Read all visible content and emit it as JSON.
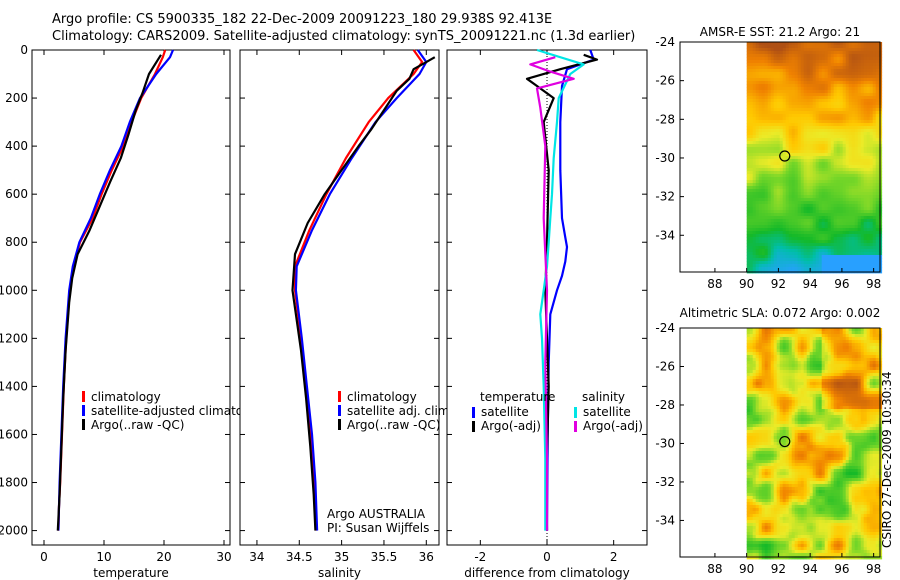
{
  "header": {
    "line1": "Argo profile: CS 5900335_182 22-Dec-2009 20091223_180 29.938S 92.413E",
    "line2": "Climatology: CARS2009. Satellite-adjusted climatology: synTS_20091221.nc (1.3d earlier)"
  },
  "side_label": "CSIRO 27-Dec-2009 10:30:34",
  "colors": {
    "clim": "#ff0000",
    "sat": "#0000ff",
    "argo": "#000000",
    "sat_sal": "#00e5e5",
    "argo_sal": "#e000e0"
  },
  "chart_data": [
    {
      "name": "temperature-panel",
      "type": "line",
      "xlabel": "temperature",
      "xlim": [
        -2,
        31
      ],
      "ylim": [
        0,
        2060
      ],
      "xticks": [
        0,
        10,
        20,
        30
      ],
      "yticks": [
        0,
        200,
        400,
        600,
        800,
        1000,
        1200,
        1400,
        1600,
        1800,
        2000
      ],
      "legend": [
        "climatology",
        "satellite-adjusted climatology",
        "Argo(..raw -QC)"
      ],
      "legend_colors": [
        "#ff0000",
        "#0000ff",
        "#000000"
      ],
      "series": [
        {
          "name": "climatology",
          "color": "#ff0000",
          "x": [
            20.2,
            19.8,
            18.5,
            16.2,
            14.6,
            13.2,
            11.3,
            9.6,
            8.1,
            6.0,
            4.9,
            4.3,
            3.7,
            3.3,
            3.0,
            2.7,
            2.5,
            2.4
          ],
          "y": [
            0,
            30,
            100,
            200,
            300,
            400,
            500,
            600,
            700,
            800,
            900,
            1000,
            1200,
            1400,
            1600,
            1800,
            1900,
            2000
          ]
        },
        {
          "name": "satellite-adjusted climatology",
          "color": "#0000ff",
          "x": [
            21.5,
            21.0,
            18.7,
            16.0,
            14.3,
            12.9,
            11.0,
            9.3,
            7.8,
            5.9,
            4.8,
            4.2,
            3.6,
            3.2,
            2.9,
            2.6,
            2.5,
            2.4
          ],
          "y": [
            0,
            30,
            100,
            200,
            300,
            400,
            500,
            600,
            700,
            800,
            900,
            1000,
            1200,
            1400,
            1600,
            1800,
            1900,
            2000
          ]
        },
        {
          "name": "Argo(..raw -QC)",
          "color": "#000000",
          "x": [
            19.5,
            19.0,
            17.5,
            16.4,
            15.3,
            14.1,
            12.8,
            11.0,
            9.3,
            7.6,
            5.6,
            4.7,
            4.2,
            3.6,
            3.2,
            2.9,
            2.6,
            2.4,
            2.3
          ],
          "y": [
            20,
            40,
            100,
            180,
            250,
            350,
            450,
            550,
            650,
            750,
            850,
            950,
            1050,
            1250,
            1450,
            1650,
            1850,
            1950,
            2000
          ]
        }
      ]
    },
    {
      "name": "salinity-panel",
      "type": "line",
      "xlabel": "salinity",
      "xlim": [
        33.8,
        36.15
      ],
      "ylim": [
        0,
        2060
      ],
      "xticks": [
        34,
        34.5,
        35,
        35.5,
        36
      ],
      "legend": [
        "climatology",
        "satellite adj. clim.",
        "Argo(..raw -QC)"
      ],
      "legend_colors": [
        "#ff0000",
        "#0000ff",
        "#000000"
      ],
      "annotation": [
        "Argo AUSTRALIA",
        "PI: Susan Wijffels"
      ],
      "series": [
        {
          "name": "climatology",
          "color": "#ff0000",
          "x": [
            35.85,
            35.95,
            35.85,
            35.55,
            35.32,
            35.05,
            34.82,
            34.62,
            34.45,
            34.45,
            34.52,
            34.58,
            34.64,
            34.68,
            34.7
          ],
          "y": [
            0,
            50,
            100,
            200,
            300,
            450,
            600,
            750,
            900,
            1000,
            1200,
            1400,
            1600,
            1800,
            2000
          ]
        },
        {
          "name": "satellite adj. clim.",
          "color": "#0000ff",
          "x": [
            35.9,
            36.0,
            35.92,
            35.65,
            35.4,
            35.12,
            34.86,
            34.65,
            34.47,
            34.46,
            34.53,
            34.59,
            34.65,
            34.69,
            34.71
          ],
          "y": [
            0,
            50,
            100,
            200,
            300,
            450,
            600,
            750,
            900,
            1000,
            1200,
            1400,
            1600,
            1800,
            2000
          ]
        },
        {
          "name": "Argo(..raw -QC)",
          "color": "#000000",
          "x": [
            36.1,
            35.95,
            35.85,
            35.8,
            35.65,
            35.5,
            35.35,
            35.2,
            35.0,
            34.8,
            34.6,
            34.45,
            34.42,
            34.46,
            34.52,
            34.58,
            34.63,
            34.67,
            34.69
          ],
          "y": [
            30,
            60,
            80,
            120,
            170,
            250,
            330,
            400,
            500,
            600,
            720,
            850,
            1000,
            1100,
            1250,
            1450,
            1650,
            1850,
            2000
          ]
        }
      ]
    },
    {
      "name": "difference-panel",
      "type": "line",
      "xlabel": "difference from climatology",
      "xlim": [
        -3,
        3
      ],
      "ylim": [
        0,
        2060
      ],
      "xticks": [
        -2,
        0,
        2
      ],
      "legend_temperature": [
        "temperature",
        "satellite",
        "Argo(-adj)"
      ],
      "legend_salinity": [
        "salinity",
        "satellite",
        "Argo(-adj)"
      ],
      "legend_colors": [
        "#0000ff",
        "#000000",
        "#00e5e5",
        "#e000e0"
      ],
      "series": [
        {
          "name": "temperature satellite",
          "color": "#0000ff",
          "x": [
            1.3,
            1.4,
            0.6,
            0.45,
            0.4,
            0.4,
            0.45,
            0.55,
            0.6,
            0.55,
            0.45,
            0.3,
            0.1,
            0.05,
            0.02,
            0.0
          ],
          "y": [
            0,
            40,
            80,
            150,
            300,
            500,
            700,
            780,
            820,
            880,
            940,
            1000,
            1100,
            1300,
            1600,
            2000
          ]
        },
        {
          "name": "temperature Argo(-adj)",
          "color": "#000000",
          "x": [
            1.1,
            1.5,
            0.4,
            -0.6,
            -0.3,
            0.2,
            -0.1,
            0.05,
            0.0,
            -0.05,
            0.05,
            -0.02,
            0.0
          ],
          "y": [
            20,
            40,
            80,
            120,
            150,
            200,
            300,
            500,
            800,
            1000,
            1400,
            1800,
            2000
          ]
        },
        {
          "name": "salinity satellite",
          "color": "#00e5e5",
          "x": [
            -0.3,
            1.1,
            0.7,
            0.35,
            0.3,
            0.2,
            0.15,
            0.1,
            0.05,
            0.0,
            -0.1,
            -0.2,
            -0.15,
            -0.1,
            -0.05,
            -0.05
          ],
          "y": [
            0,
            60,
            100,
            200,
            300,
            450,
            600,
            700,
            800,
            900,
            1000,
            1100,
            1200,
            1400,
            1700,
            2000
          ]
        },
        {
          "name": "salinity Argo(-adj)",
          "color": "#e000e0",
          "x": [
            0.25,
            -0.5,
            0.1,
            0.8,
            -0.3,
            -0.2,
            -0.05,
            -0.1,
            0.0,
            -0.05,
            0.0,
            0.0
          ],
          "y": [
            30,
            60,
            90,
            120,
            160,
            240,
            400,
            700,
            1000,
            1300,
            1700,
            2000
          ]
        }
      ]
    },
    {
      "name": "sst-map",
      "type": "heatmap",
      "title": "AMSR-E SST: 21.2 Argo: 21",
      "xticks": [
        88,
        90,
        92,
        94,
        96,
        98
      ],
      "yticks": [
        -24,
        -26,
        -28,
        -30,
        -32,
        -34
      ],
      "xlim": [
        85.8,
        98.4
      ],
      "ylim": [
        -35.9,
        -24
      ],
      "data_xlim": [
        90,
        98.4
      ],
      "marker": [
        92.4,
        -29.9
      ]
    },
    {
      "name": "sla-map",
      "type": "heatmap",
      "title": "Altimetric SLA: 0.072 Argo: 0.002",
      "xticks": [
        88,
        90,
        92,
        94,
        96,
        98
      ],
      "yticks": [
        -24,
        -26,
        -28,
        -30,
        -32,
        -34
      ],
      "xlim": [
        85.8,
        98.4
      ],
      "ylim": [
        -35.9,
        -24
      ],
      "data_xlim": [
        90,
        98.4
      ],
      "marker": [
        92.4,
        -29.9
      ]
    }
  ]
}
